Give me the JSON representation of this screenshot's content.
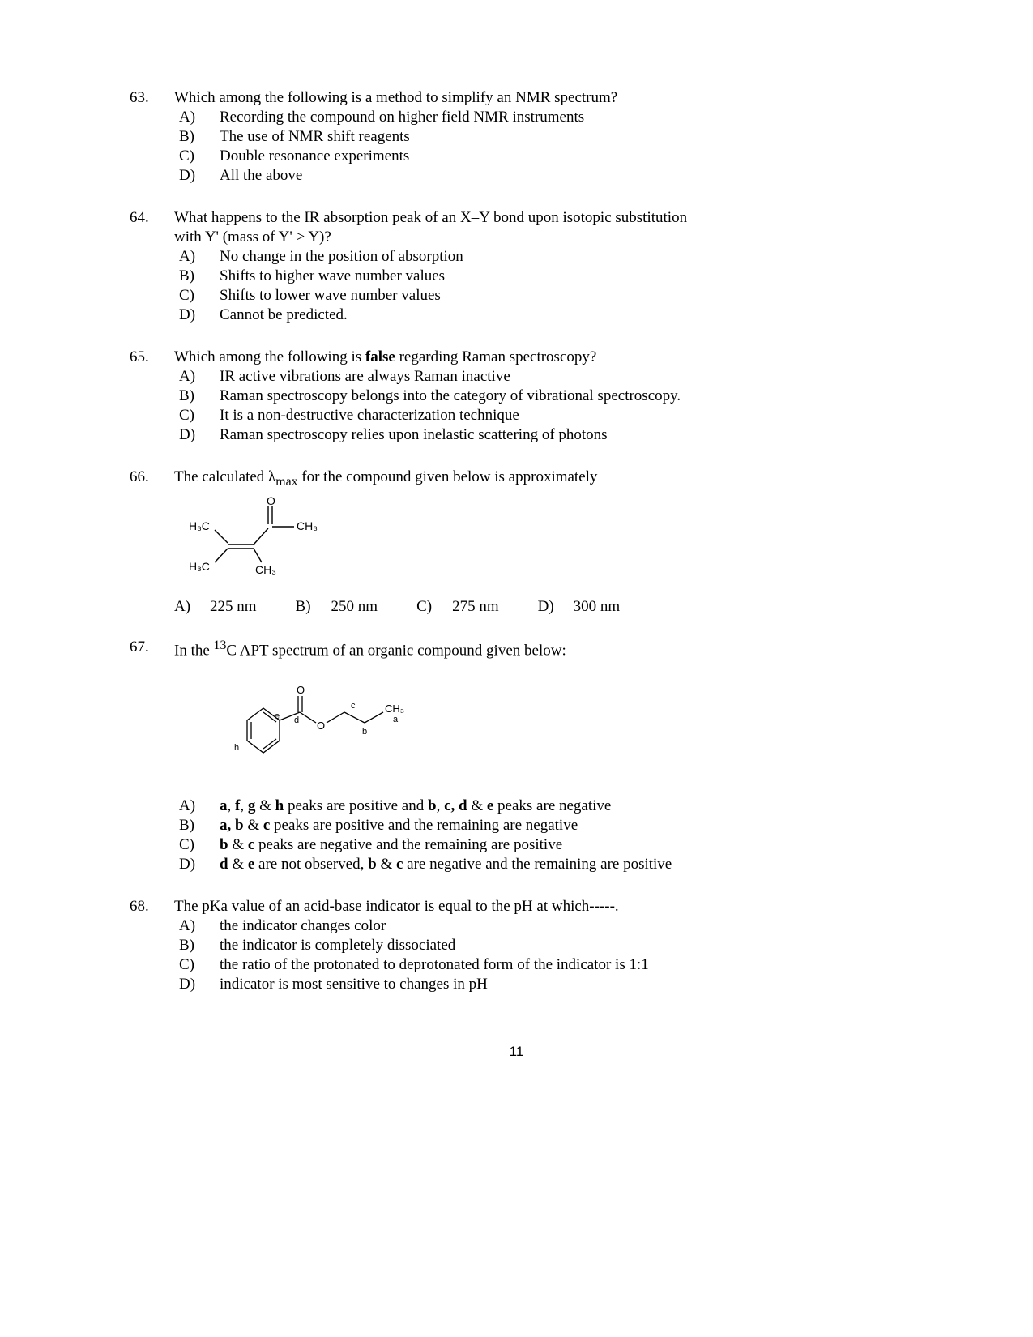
{
  "pageNumber": "11",
  "q63": {
    "num": "63.",
    "stem": "Which among the following is a method to simplify an NMR spectrum?",
    "A": "Recording the compound on higher field NMR instruments",
    "B": "The use of NMR shift reagents",
    "C": "Double resonance experiments",
    "D": "All the above"
  },
  "q64": {
    "num": "64.",
    "stem1": "What happens to the IR absorption peak of an X–Y bond upon isotopic substitution",
    "stem2": "with Y' (mass of Y' > Y)?",
    "A": "No change in the position of absorption",
    "B": "Shifts to higher wave number values",
    "C": "Shifts to lower wave number values",
    "D": "Cannot be predicted."
  },
  "q65": {
    "num": "65.",
    "stemPre": "Which among the following is ",
    "stemBold": "false",
    "stemPost": " regarding Raman spectroscopy?",
    "A": "IR active vibrations are always Raman inactive",
    "B": "Raman spectroscopy belongs into the category of vibrational spectroscopy.",
    "C": "It is a non-destructive characterization technique",
    "D": "Raman spectroscopy relies upon inelastic scattering of photons"
  },
  "q66": {
    "num": "66.",
    "stemPre": "The calculated λ",
    "stemSub": "max",
    "stemPost": " for the compound given below is approximately",
    "A": "225 nm",
    "B": "250 nm",
    "C": "275 nm",
    "D": "300 nm",
    "structure": {
      "O": "O",
      "CH3_1": "CH₃",
      "CH3_2": "CH₃",
      "H3C_1": "H₃C",
      "H3C_2": "H₃C"
    }
  },
  "q67": {
    "num": "67.",
    "stemPre": "In the ",
    "stemSup": "13",
    "stemPost": "C APT spectrum of an organic compound given below:",
    "A_parts": [
      "a",
      ", ",
      "f",
      ", ",
      "g",
      " & ",
      "h",
      " peaks are positive and ",
      "b",
      ", ",
      "c, d",
      " & ",
      "e",
      " peaks are negative"
    ],
    "B_parts": [
      "a, b",
      " & ",
      "c",
      " peaks are positive and the remaining are negative"
    ],
    "C_parts": [
      "b",
      " & ",
      "c",
      " peaks are negative and the remaining are positive"
    ],
    "D_parts": [
      "d",
      " & ",
      "e",
      " are not observed, ",
      "b",
      " & ",
      "c",
      " are negative and the remaining are positive"
    ],
    "structure": {
      "O_top": "O",
      "O_bridge": "O",
      "CH3": "CH₃",
      "a": "a",
      "b": "b",
      "c": "c",
      "d": "d",
      "e": "e",
      "h": "h"
    }
  },
  "q68": {
    "num": "68.",
    "stem": "The pKa value of an acid-base indicator is equal to the pH at which-----.",
    "A": "the indicator changes color",
    "B": "the indicator is completely dissociated",
    "C": "the ratio of the protonated to deprotonated form of the indicator is 1:1",
    "D": "indicator is most sensitive to changes in   pH"
  },
  "labels": {
    "A": "A)",
    "B": "B)",
    "C": "C)",
    "D": "D)"
  }
}
